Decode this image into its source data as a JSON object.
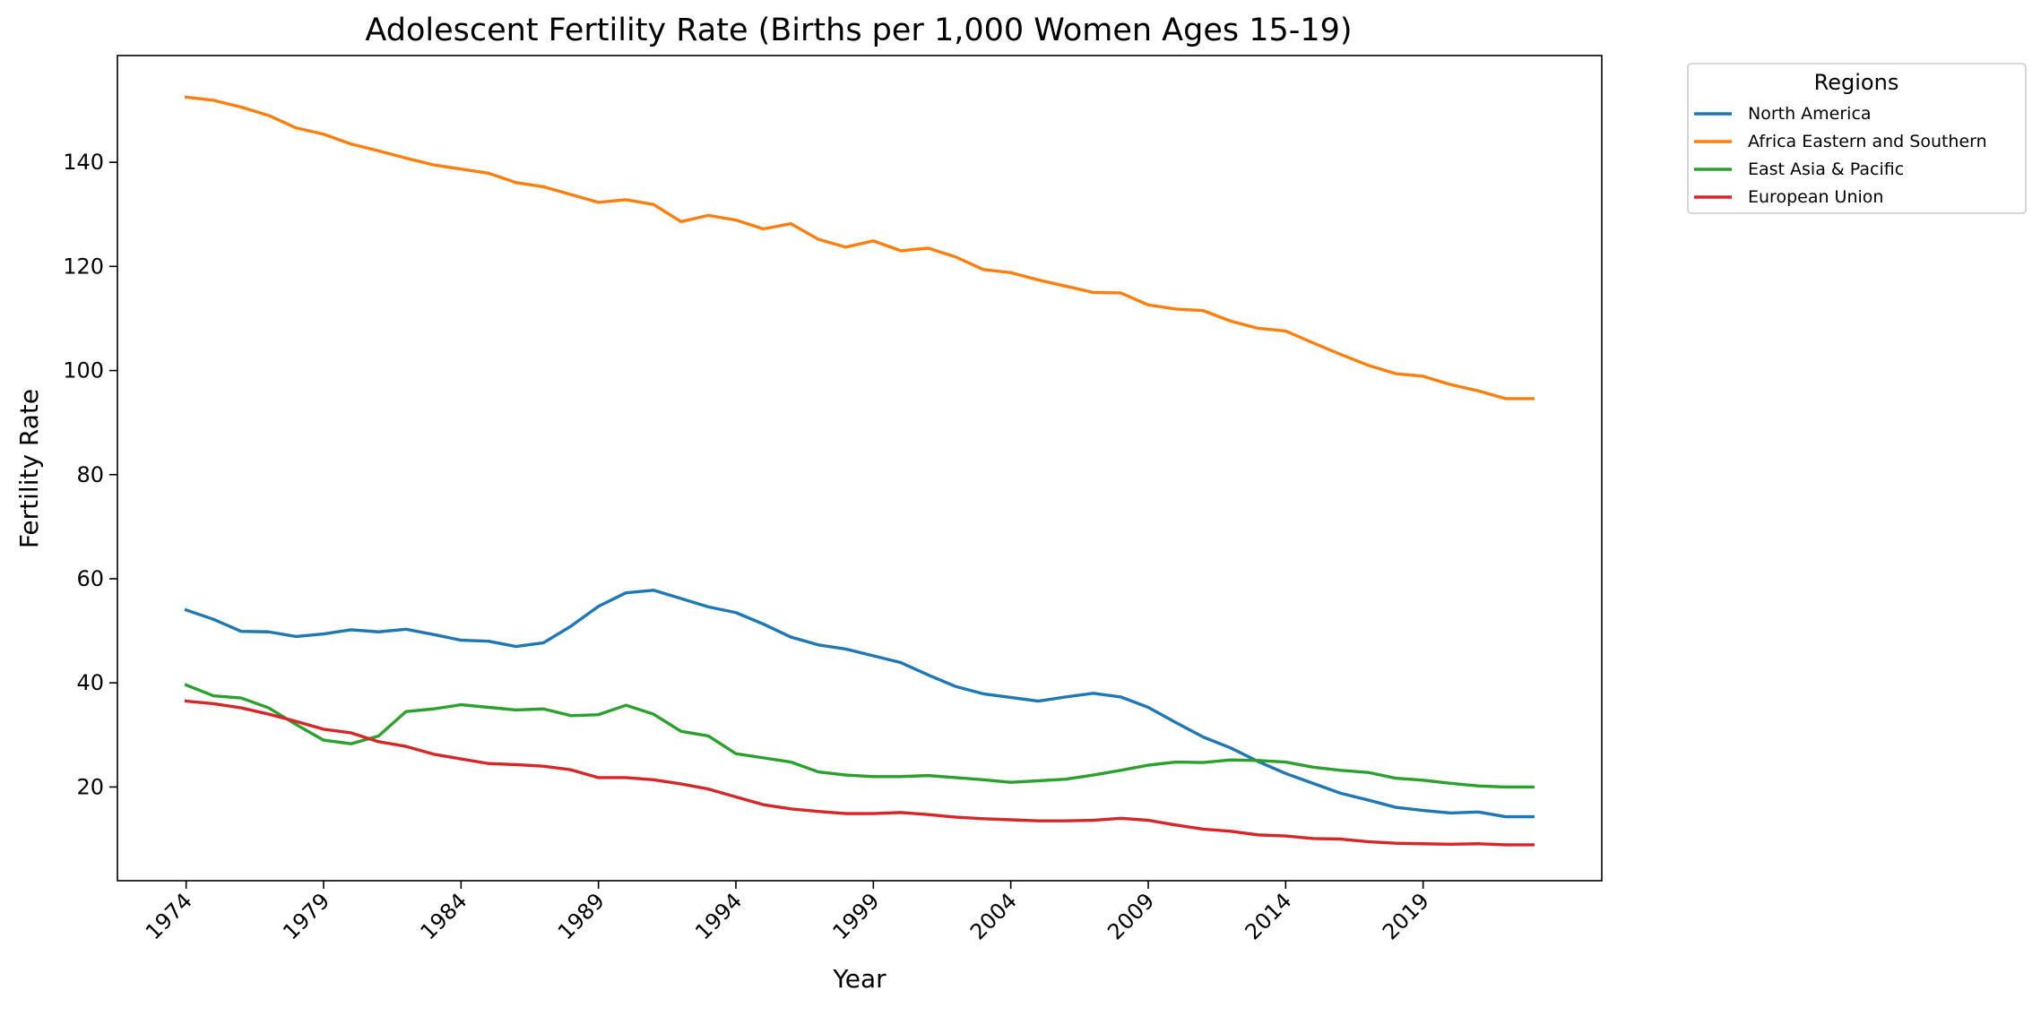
{
  "chart_data": {
    "type": "line",
    "title": "Adolescent Fertility Rate (Births per 1,000 Women Ages 15-19)",
    "xlabel": "Year",
    "ylabel": "Fertility Rate",
    "legend_title": "Regions",
    "legend_placement": "outside upper-right",
    "grid": false,
    "xlim": [
      1971.5,
      2025.5
    ],
    "ylim": [
      2.0,
      160.5
    ],
    "x_ticks": [
      1974,
      1979,
      1984,
      1989,
      1994,
      1999,
      2004,
      2009,
      2014,
      2019
    ],
    "y_ticks": [
      20,
      40,
      60,
      80,
      100,
      120,
      140
    ],
    "x": [
      1974,
      1975,
      1976,
      1977,
      1978,
      1979,
      1980,
      1981,
      1982,
      1983,
      1984,
      1985,
      1986,
      1987,
      1988,
      1989,
      1990,
      1991,
      1992,
      1993,
      1994,
      1995,
      1996,
      1997,
      1998,
      1999,
      2000,
      2001,
      2002,
      2003,
      2004,
      2005,
      2006,
      2007,
      2008,
      2009,
      2010,
      2011,
      2012,
      2013,
      2014,
      2015,
      2016,
      2017,
      2018,
      2019,
      2020,
      2021,
      2022,
      2023
    ],
    "series": [
      {
        "name": "North America",
        "color": "#1f77b4",
        "values": [
          54.0,
          52.2,
          49.9,
          49.8,
          48.9,
          49.4,
          50.2,
          49.8,
          50.3,
          49.3,
          48.2,
          48.0,
          47.0,
          47.7,
          50.9,
          54.7,
          57.3,
          57.8,
          56.2,
          54.6,
          53.5,
          51.3,
          48.8,
          47.3,
          46.5,
          45.2,
          43.9,
          41.5,
          39.3,
          37.9,
          37.2,
          36.5,
          37.3,
          38.0,
          37.3,
          35.3,
          32.4,
          29.6,
          27.5,
          24.9,
          22.6,
          20.7,
          18.8,
          17.5,
          16.1,
          15.5,
          15.0,
          15.2,
          14.3,
          14.3
        ]
      },
      {
        "name": "Africa Eastern and Southern",
        "color": "#ff7f0e",
        "values": [
          152.5,
          151.9,
          150.6,
          149.0,
          146.6,
          145.4,
          143.5,
          142.2,
          140.8,
          139.5,
          138.7,
          137.9,
          136.1,
          135.3,
          133.8,
          132.3,
          132.8,
          131.9,
          128.6,
          129.8,
          128.9,
          127.2,
          128.2,
          125.2,
          123.7,
          124.9,
          123.0,
          123.5,
          121.8,
          119.4,
          118.8,
          117.4,
          116.2,
          115.0,
          114.9,
          112.6,
          111.8,
          111.5,
          109.5,
          108.1,
          107.6,
          105.3,
          103.1,
          101.0,
          99.4,
          98.9,
          97.3,
          96.1,
          94.6,
          94.6
        ]
      },
      {
        "name": "East Asia & Pacific",
        "color": "#2ca02c",
        "values": [
          39.6,
          37.5,
          37.1,
          35.2,
          32.0,
          29.0,
          28.3,
          29.8,
          34.5,
          35.0,
          35.8,
          35.3,
          34.8,
          35.0,
          33.7,
          33.9,
          35.7,
          34.0,
          30.7,
          29.8,
          26.4,
          25.6,
          24.8,
          22.9,
          22.3,
          22.0,
          22.0,
          22.2,
          21.8,
          21.4,
          20.9,
          21.2,
          21.5,
          22.3,
          23.2,
          24.2,
          24.8,
          24.7,
          25.2,
          25.1,
          24.8,
          23.8,
          23.2,
          22.8,
          21.7,
          21.3,
          20.7,
          20.2,
          20.0,
          20.0
        ]
      },
      {
        "name": "European Union",
        "color": "#d62728",
        "values": [
          36.5,
          36.0,
          35.2,
          34.0,
          32.6,
          31.1,
          30.4,
          28.7,
          27.8,
          26.3,
          25.4,
          24.5,
          24.3,
          24.0,
          23.3,
          21.8,
          21.8,
          21.4,
          20.6,
          19.6,
          18.1,
          16.6,
          15.8,
          15.3,
          14.9,
          14.9,
          15.1,
          14.7,
          14.2,
          13.9,
          13.7,
          13.5,
          13.5,
          13.6,
          14.0,
          13.6,
          12.7,
          11.9,
          11.5,
          10.8,
          10.6,
          10.1,
          10.0,
          9.5,
          9.2,
          9.1,
          9.0,
          9.1,
          8.9,
          8.9
        ]
      }
    ]
  }
}
